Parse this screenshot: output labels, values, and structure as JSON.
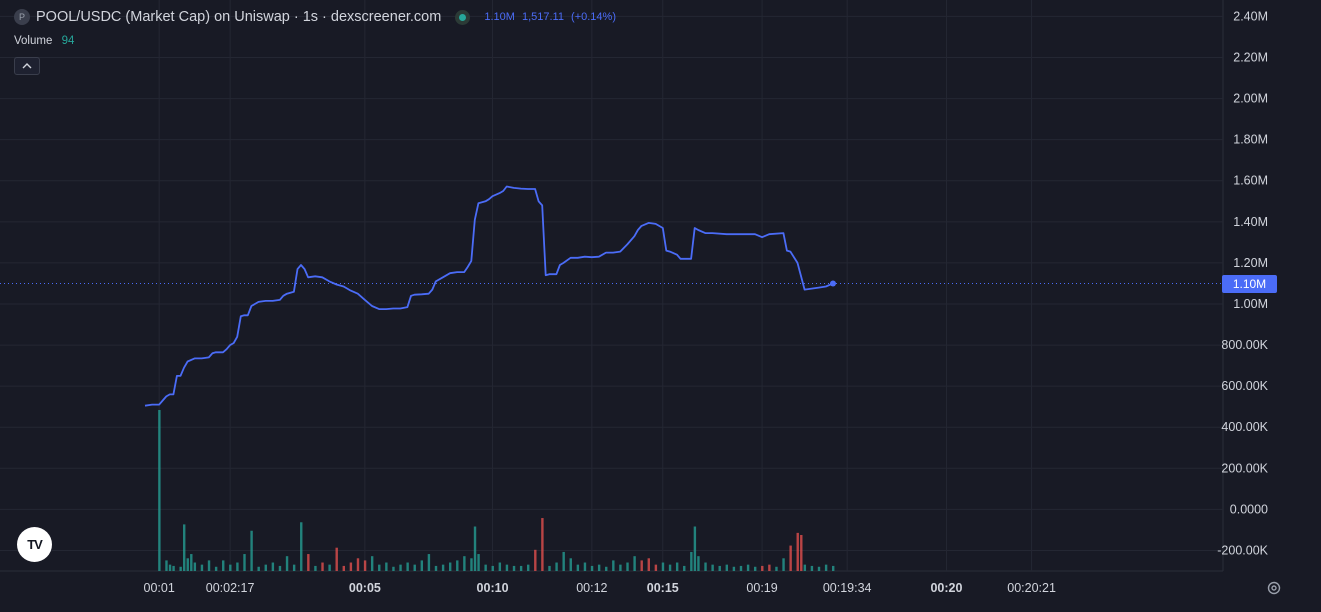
{
  "header": {
    "token_badge": "P",
    "title": "POOL/USDC (Market Cap) on Uniswap · 1s · dexscreener.com",
    "status_color": "#26a69a",
    "last_value": "1.10M",
    "change_abs": "1,517.11",
    "change_pct": "(+0.14%)"
  },
  "volume_legend": {
    "label": "Volume",
    "value": "94"
  },
  "collapse_icon": "chevron-up-icon",
  "logo_text": "TV",
  "price_tag": "1.10M",
  "colors": {
    "line": "#4b6cf7",
    "up": "#26a69a",
    "down": "#ef5350",
    "background": "#181a25",
    "grid": "#242733"
  },
  "chart_data": {
    "type": "line",
    "title": "POOL/USDC (Market Cap) on Uniswap · 1s · dexscreener.com",
    "xlabel": "",
    "ylabel": "",
    "ylim": [
      -300000,
      2480000
    ],
    "y_ticks": [
      2400000,
      2200000,
      2000000,
      1800000,
      1600000,
      1400000,
      1200000,
      1000000,
      800000,
      600000,
      400000,
      200000,
      0,
      -200000
    ],
    "y_tick_labels": [
      "2.40M",
      "2.20M",
      "2.00M",
      "1.80M",
      "1.60M",
      "1.40M",
      "1.20M",
      "1.00M",
      "800.00K",
      "600.00K",
      "400.00K",
      "200.00K",
      "0.0000",
      "-200.00K"
    ],
    "x_ticks": [
      {
        "label": "00:01",
        "x": 0.0,
        "bold": false
      },
      {
        "label": "00:02:17",
        "x": 10.0,
        "bold": false
      },
      {
        "label": "00:05",
        "x": 29.0,
        "bold": true
      },
      {
        "label": "00:10",
        "x": 47.0,
        "bold": true
      },
      {
        "label": "00:12",
        "x": 61.0,
        "bold": false
      },
      {
        "label": "00:15",
        "x": 71.0,
        "bold": true
      },
      {
        "label": "00:19",
        "x": 85.0,
        "bold": false
      },
      {
        "label": "00:19:34",
        "x": 97.0,
        "bold": false
      },
      {
        "label": "00:20",
        "x": 111.0,
        "bold": true
      },
      {
        "label": "00:20:21",
        "x": 123.0,
        "bold": false
      }
    ],
    "x_range": [
      -2.0,
      145.0
    ],
    "last_value": 1100000,
    "grid": true,
    "series": [
      {
        "values": [
          [
            -2,
            505000
          ],
          [
            -1,
            510000
          ],
          [
            0,
            510000
          ],
          [
            0.5,
            530000
          ],
          [
            1,
            550000
          ],
          [
            1.5,
            560000
          ],
          [
            2,
            560000
          ],
          [
            2.5,
            650000
          ],
          [
            3,
            650000
          ],
          [
            3.5,
            690000
          ],
          [
            4,
            720000
          ],
          [
            5,
            735000
          ],
          [
            6,
            735000
          ],
          [
            7,
            740000
          ],
          [
            7.5,
            760000
          ],
          [
            8,
            765000
          ],
          [
            9,
            765000
          ],
          [
            9.5,
            780000
          ],
          [
            10,
            800000
          ],
          [
            10.5,
            810000
          ],
          [
            11,
            840000
          ],
          [
            11.5,
            940000
          ],
          [
            12,
            945000
          ],
          [
            12.5,
            945000
          ],
          [
            13,
            990000
          ],
          [
            14,
            1010000
          ],
          [
            15,
            1015000
          ],
          [
            16,
            1015000
          ],
          [
            17,
            1020000
          ],
          [
            17.5,
            1040000
          ],
          [
            18,
            1050000
          ],
          [
            19,
            1060000
          ],
          [
            19.5,
            1170000
          ],
          [
            20,
            1190000
          ],
          [
            20.5,
            1170000
          ],
          [
            21,
            1130000
          ],
          [
            22,
            1135000
          ],
          [
            23,
            1130000
          ],
          [
            24,
            1110000
          ],
          [
            25,
            1095000
          ],
          [
            26,
            1085000
          ],
          [
            27,
            1065000
          ],
          [
            28,
            1050000
          ],
          [
            29,
            1020000
          ],
          [
            30,
            990000
          ],
          [
            31,
            975000
          ],
          [
            32,
            975000
          ],
          [
            33,
            978000
          ],
          [
            34,
            978000
          ],
          [
            35,
            985000
          ],
          [
            35.5,
            1040000
          ],
          [
            36,
            1045000
          ],
          [
            37,
            1047000
          ],
          [
            38,
            1050000
          ],
          [
            38.5,
            1070000
          ],
          [
            39,
            1110000
          ],
          [
            40,
            1130000
          ],
          [
            41,
            1150000
          ],
          [
            42,
            1155000
          ],
          [
            43,
            1155000
          ],
          [
            43.5,
            1180000
          ],
          [
            44,
            1210000
          ],
          [
            44.5,
            1410000
          ],
          [
            45,
            1490000
          ],
          [
            46,
            1500000
          ],
          [
            46.5,
            1510000
          ],
          [
            47,
            1525000
          ],
          [
            48,
            1540000
          ],
          [
            48.5,
            1550000
          ],
          [
            49,
            1572000
          ],
          [
            50,
            1565000
          ],
          [
            51,
            1562000
          ],
          [
            52,
            1560000
          ],
          [
            53,
            1560000
          ],
          [
            53.5,
            1500000
          ],
          [
            54,
            1480000
          ],
          [
            54.5,
            1140000
          ],
          [
            55,
            1145000
          ],
          [
            56,
            1145000
          ],
          [
            56.5,
            1190000
          ],
          [
            57,
            1200000
          ],
          [
            58,
            1225000
          ],
          [
            59,
            1225000
          ],
          [
            60,
            1230000
          ],
          [
            61,
            1228000
          ],
          [
            62,
            1230000
          ],
          [
            63,
            1250000
          ],
          [
            64,
            1250000
          ],
          [
            65,
            1255000
          ],
          [
            66,
            1290000
          ],
          [
            67,
            1330000
          ],
          [
            67.5,
            1360000
          ],
          [
            68,
            1380000
          ],
          [
            69,
            1395000
          ],
          [
            70,
            1390000
          ],
          [
            71,
            1370000
          ],
          [
            71.5,
            1260000
          ],
          [
            72,
            1255000
          ],
          [
            73,
            1240000
          ],
          [
            73.5,
            1220000
          ],
          [
            74,
            1220000
          ],
          [
            75,
            1220000
          ],
          [
            75.5,
            1370000
          ],
          [
            76,
            1360000
          ],
          [
            77,
            1345000
          ],
          [
            78,
            1345000
          ],
          [
            80,
            1340000
          ],
          [
            82,
            1340000
          ],
          [
            84,
            1340000
          ],
          [
            85,
            1325000
          ],
          [
            86,
            1340000
          ],
          [
            88,
            1345000
          ],
          [
            88.5,
            1260000
          ],
          [
            89,
            1255000
          ],
          [
            90,
            1200000
          ],
          [
            91,
            1070000
          ],
          [
            92,
            1075000
          ],
          [
            93,
            1080000
          ],
          [
            94,
            1085000
          ],
          [
            95,
            1100000
          ]
        ]
      }
    ],
    "volume_series": {
      "name": "Volume",
      "bars": [
        [
          0,
          380000,
          "up"
        ],
        [
          1,
          25000,
          "up"
        ],
        [
          1.5,
          15000,
          "up"
        ],
        [
          2,
          12000,
          "up"
        ],
        [
          3,
          10000,
          "up"
        ],
        [
          3.5,
          110000,
          "up"
        ],
        [
          4,
          30000,
          "up"
        ],
        [
          4.5,
          40000,
          "up"
        ],
        [
          5,
          20000,
          "up"
        ],
        [
          6,
          15000,
          "up"
        ],
        [
          7,
          25000,
          "up"
        ],
        [
          8,
          10000,
          "up"
        ],
        [
          9,
          25000,
          "up"
        ],
        [
          10,
          15000,
          "up"
        ],
        [
          11,
          20000,
          "up"
        ],
        [
          12,
          40000,
          "up"
        ],
        [
          13,
          95000,
          "up"
        ],
        [
          14,
          10000,
          "up"
        ],
        [
          15,
          15000,
          "up"
        ],
        [
          16,
          20000,
          "up"
        ],
        [
          17,
          12000,
          "up"
        ],
        [
          18,
          35000,
          "up"
        ],
        [
          19,
          15000,
          "up"
        ],
        [
          20,
          115000,
          "up"
        ],
        [
          21,
          40000,
          "down"
        ],
        [
          22,
          12000,
          "up"
        ],
        [
          23,
          20000,
          "down"
        ],
        [
          24,
          15000,
          "up"
        ],
        [
          25,
          55000,
          "down"
        ],
        [
          26,
          12000,
          "down"
        ],
        [
          27,
          20000,
          "down"
        ],
        [
          28,
          30000,
          "down"
        ],
        [
          29,
          25000,
          "down"
        ],
        [
          30,
          35000,
          "up"
        ],
        [
          31,
          15000,
          "up"
        ],
        [
          32,
          20000,
          "up"
        ],
        [
          33,
          10000,
          "up"
        ],
        [
          34,
          15000,
          "up"
        ],
        [
          35,
          20000,
          "up"
        ],
        [
          36,
          15000,
          "up"
        ],
        [
          37,
          25000,
          "up"
        ],
        [
          38,
          40000,
          "up"
        ],
        [
          39,
          12000,
          "up"
        ],
        [
          40,
          15000,
          "up"
        ],
        [
          41,
          20000,
          "up"
        ],
        [
          42,
          25000,
          "up"
        ],
        [
          43,
          35000,
          "up"
        ],
        [
          44,
          30000,
          "up"
        ],
        [
          44.5,
          105000,
          "up"
        ],
        [
          45,
          40000,
          "up"
        ],
        [
          46,
          15000,
          "up"
        ],
        [
          47,
          12000,
          "up"
        ],
        [
          48,
          20000,
          "up"
        ],
        [
          49,
          15000,
          "up"
        ],
        [
          50,
          12000,
          "up"
        ],
        [
          51,
          12000,
          "up"
        ],
        [
          52,
          15000,
          "up"
        ],
        [
          53,
          50000,
          "down"
        ],
        [
          54,
          125000,
          "down"
        ],
        [
          55,
          12000,
          "up"
        ],
        [
          56,
          20000,
          "up"
        ],
        [
          57,
          45000,
          "up"
        ],
        [
          58,
          30000,
          "up"
        ],
        [
          59,
          15000,
          "up"
        ],
        [
          60,
          20000,
          "up"
        ],
        [
          61,
          12000,
          "up"
        ],
        [
          62,
          15000,
          "up"
        ],
        [
          63,
          10000,
          "up"
        ],
        [
          64,
          25000,
          "up"
        ],
        [
          65,
          15000,
          "up"
        ],
        [
          66,
          20000,
          "up"
        ],
        [
          67,
          35000,
          "up"
        ],
        [
          68,
          25000,
          "down"
        ],
        [
          69,
          30000,
          "down"
        ],
        [
          70,
          15000,
          "down"
        ],
        [
          71,
          20000,
          "up"
        ],
        [
          72,
          15000,
          "up"
        ],
        [
          73,
          20000,
          "up"
        ],
        [
          74,
          12000,
          "up"
        ],
        [
          75,
          45000,
          "up"
        ],
        [
          75.5,
          105000,
          "up"
        ],
        [
          76,
          35000,
          "up"
        ],
        [
          77,
          20000,
          "up"
        ],
        [
          78,
          15000,
          "up"
        ],
        [
          79,
          12000,
          "up"
        ],
        [
          80,
          15000,
          "up"
        ],
        [
          81,
          10000,
          "up"
        ],
        [
          82,
          12000,
          "up"
        ],
        [
          83,
          15000,
          "up"
        ],
        [
          84,
          10000,
          "up"
        ],
        [
          85,
          12000,
          "down"
        ],
        [
          86,
          15000,
          "down"
        ],
        [
          87,
          10000,
          "up"
        ],
        [
          88,
          30000,
          "up"
        ],
        [
          89,
          60000,
          "down"
        ],
        [
          90,
          90000,
          "down"
        ],
        [
          90.5,
          85000,
          "down"
        ],
        [
          91,
          15000,
          "up"
        ],
        [
          92,
          12000,
          "up"
        ],
        [
          93,
          10000,
          "up"
        ],
        [
          94,
          15000,
          "up"
        ],
        [
          95,
          12000,
          "up"
        ]
      ]
    }
  }
}
